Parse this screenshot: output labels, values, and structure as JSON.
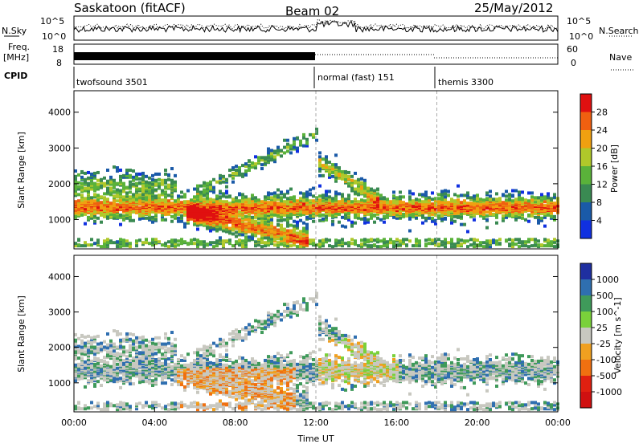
{
  "header": {
    "station": "Saskatoon (fitACF)",
    "beam": "Beam 02",
    "date": "25/May/2012"
  },
  "noise": {
    "left_label": "N.Sky",
    "right_label": "N.Search",
    "left_ticks": [
      "10^5",
      "10^0"
    ],
    "right_ticks": [
      "10^5",
      "10^0"
    ]
  },
  "freq": {
    "left_label_top": "Freq.",
    "left_label_bottom": "[MHz]",
    "left_ticks": [
      "18",
      "8"
    ],
    "right_label": "Nave",
    "right_ticks": [
      "60",
      "0"
    ]
  },
  "cpid": {
    "label": "CPID",
    "segments": [
      {
        "name": "twofsound 3501",
        "start_hour": 0
      },
      {
        "name": "normal (fast) 151",
        "start_hour": 12
      },
      {
        "name": "themis 3300",
        "start_hour": 18
      }
    ]
  },
  "chart_data": [
    {
      "type": "heatmap",
      "panel": "power",
      "ylabel": "Slant Range [km]",
      "xlabel": "",
      "x_ticks": [
        "00:00",
        "04:00",
        "08:00",
        "12:00",
        "16:00",
        "20:00",
        "00:00"
      ],
      "y_ticks": [
        1000,
        2000,
        3000,
        4000
      ],
      "xlim_hours": [
        0,
        24
      ],
      "ylim_km": [
        180,
        4600
      ],
      "colorbar": {
        "label": "Power [dB]",
        "ticks": [
          "4",
          "8",
          "12",
          "16",
          "20",
          "24",
          "28"
        ],
        "colors": [
          "#1030e0",
          "#1a5aa8",
          "#3a8a52",
          "#5ab23a",
          "#b0c82a",
          "#f0a010",
          "#f06010",
          "#e01010"
        ]
      },
      "features": [
        {
          "desc": "main scatter band",
          "hours": [
            0,
            24
          ],
          "range_km": [
            1000,
            1700
          ]
        },
        {
          "desc": "daytime enhancement",
          "hours": [
            6,
            11
          ],
          "range_km": [
            300,
            900
          ]
        }
      ]
    },
    {
      "type": "heatmap",
      "panel": "velocity",
      "ylabel": "Slant Range [km]",
      "xlabel": "Time UT",
      "x_ticks": [
        "00:00",
        "04:00",
        "08:00",
        "12:00",
        "16:00",
        "20:00",
        "00:00"
      ],
      "y_ticks": [
        1000,
        2000,
        3000,
        4000
      ],
      "xlim_hours": [
        0,
        24
      ],
      "ylim_km": [
        180,
        4600
      ],
      "colorbar": {
        "label": "Velocity [m s^-1]",
        "ticks": [
          "1000",
          "500",
          "100",
          "25",
          "-25",
          "-100",
          "-500",
          "-1000"
        ],
        "colors": [
          "#1f2fa0",
          "#2f6fb0",
          "#3f9a5a",
          "#7ad13a",
          "#c8c8c0",
          "#f0a020",
          "#f07010",
          "#e02010",
          "#d01010"
        ]
      }
    }
  ],
  "colors": {
    "ground_scatter": "#c8c8c0"
  }
}
